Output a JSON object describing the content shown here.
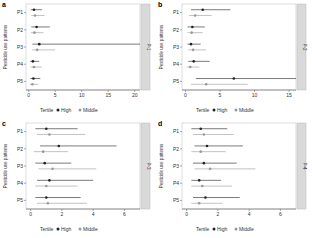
{
  "chart_data": [
    {
      "type": "forest",
      "title": "a",
      "subtitle": "P-1",
      "orientation": "horizontal",
      "legend": "bottom",
      "legend_title": "Tertile",
      "y_label": "Pesticide use patterns",
      "categories": [
        "P1",
        "P2",
        "P3",
        "P4",
        "P5"
      ],
      "xlim": [
        -0.5,
        21
      ],
      "xticks": [
        0,
        5,
        10,
        15,
        20
      ],
      "series": [
        {
          "name": "High",
          "color": "#222222",
          "marker": "circle",
          "values": [
            1.0,
            1.5,
            2.0,
            0.8,
            0.9
          ],
          "lower": [
            0.4,
            0.5,
            0.7,
            0.3,
            0.3
          ],
          "upper": [
            2.5,
            4.0,
            21.0,
            2.0,
            2.2
          ]
        },
        {
          "name": "Middle",
          "color": "#999999",
          "marker": "circle",
          "values": [
            1.2,
            1.1,
            1.6,
            1.0,
            0.7
          ],
          "lower": [
            0.5,
            0.4,
            0.6,
            0.4,
            0.3
          ],
          "upper": [
            3.0,
            2.8,
            5.0,
            2.5,
            1.8
          ]
        }
      ]
    },
    {
      "type": "forest",
      "title": "b",
      "subtitle": "P-2",
      "orientation": "horizontal",
      "legend": "bottom",
      "legend_title": "Tertile",
      "y_label": "Pesticide use patterns",
      "categories": [
        "P1",
        "P2",
        "P3",
        "P4",
        "P5"
      ],
      "xlim": [
        -0.5,
        16
      ],
      "xticks": [
        0,
        5,
        10,
        15
      ],
      "series": [
        {
          "name": "High",
          "color": "#222222",
          "marker": "circle",
          "values": [
            2.5,
            1.0,
            0.8,
            1.2,
            7.0
          ],
          "lower": [
            0.8,
            0.3,
            0.3,
            0.4,
            1.5
          ],
          "upper": [
            6.5,
            2.8,
            2.2,
            3.5,
            16.0
          ]
        },
        {
          "name": "Middle",
          "color": "#999999",
          "marker": "circle",
          "values": [
            1.4,
            0.9,
            1.1,
            0.7,
            3.0
          ],
          "lower": [
            0.5,
            0.3,
            0.4,
            0.2,
            0.8
          ],
          "upper": [
            3.8,
            2.5,
            3.0,
            2.0,
            9.0
          ]
        }
      ]
    },
    {
      "type": "forest",
      "title": "c",
      "subtitle": "P-3",
      "orientation": "horizontal",
      "legend": "bottom",
      "legend_title": "Tertile",
      "y_label": "Pesticide use patterns",
      "categories": [
        "P1",
        "P2",
        "P3",
        "P4",
        "P5"
      ],
      "xlim": [
        -0.3,
        7
      ],
      "xticks": [
        0,
        2,
        4,
        6
      ],
      "series": [
        {
          "name": "High",
          "color": "#222222",
          "marker": "circle",
          "values": [
            1.0,
            1.8,
            0.9,
            1.2,
            1.0
          ],
          "lower": [
            0.3,
            0.6,
            0.3,
            0.4,
            0.3
          ],
          "upper": [
            3.0,
            5.5,
            2.6,
            4.0,
            3.2
          ]
        },
        {
          "name": "Middle",
          "color": "#999999",
          "marker": "circle",
          "values": [
            1.2,
            0.8,
            1.4,
            1.0,
            1.1
          ],
          "lower": [
            0.4,
            0.2,
            0.5,
            0.3,
            0.4
          ],
          "upper": [
            3.5,
            2.4,
            4.2,
            3.0,
            3.6
          ]
        }
      ]
    },
    {
      "type": "forest",
      "title": "d",
      "subtitle": "P-4",
      "orientation": "horizontal",
      "legend": "bottom",
      "legend_title": "Tertile",
      "y_label": "Pesticide use patterns",
      "categories": [
        "P1",
        "P2",
        "P3",
        "P4",
        "P5"
      ],
      "xlim": [
        -0.3,
        7
      ],
      "xticks": [
        0,
        2,
        4,
        6
      ],
      "series": [
        {
          "name": "High",
          "color": "#222222",
          "marker": "circle",
          "values": [
            0.9,
            1.3,
            1.1,
            0.8,
            1.2
          ],
          "lower": [
            0.3,
            0.5,
            0.4,
            0.3,
            0.4
          ],
          "upper": [
            2.6,
            3.6,
            3.2,
            2.2,
            3.4
          ]
        },
        {
          "name": "Middle",
          "color": "#999999",
          "marker": "circle",
          "values": [
            1.1,
            0.9,
            1.5,
            1.0,
            0.8
          ],
          "lower": [
            0.4,
            0.3,
            0.5,
            0.3,
            0.3
          ],
          "upper": [
            3.0,
            2.5,
            4.4,
            2.9,
            2.3
          ]
        }
      ]
    }
  ]
}
